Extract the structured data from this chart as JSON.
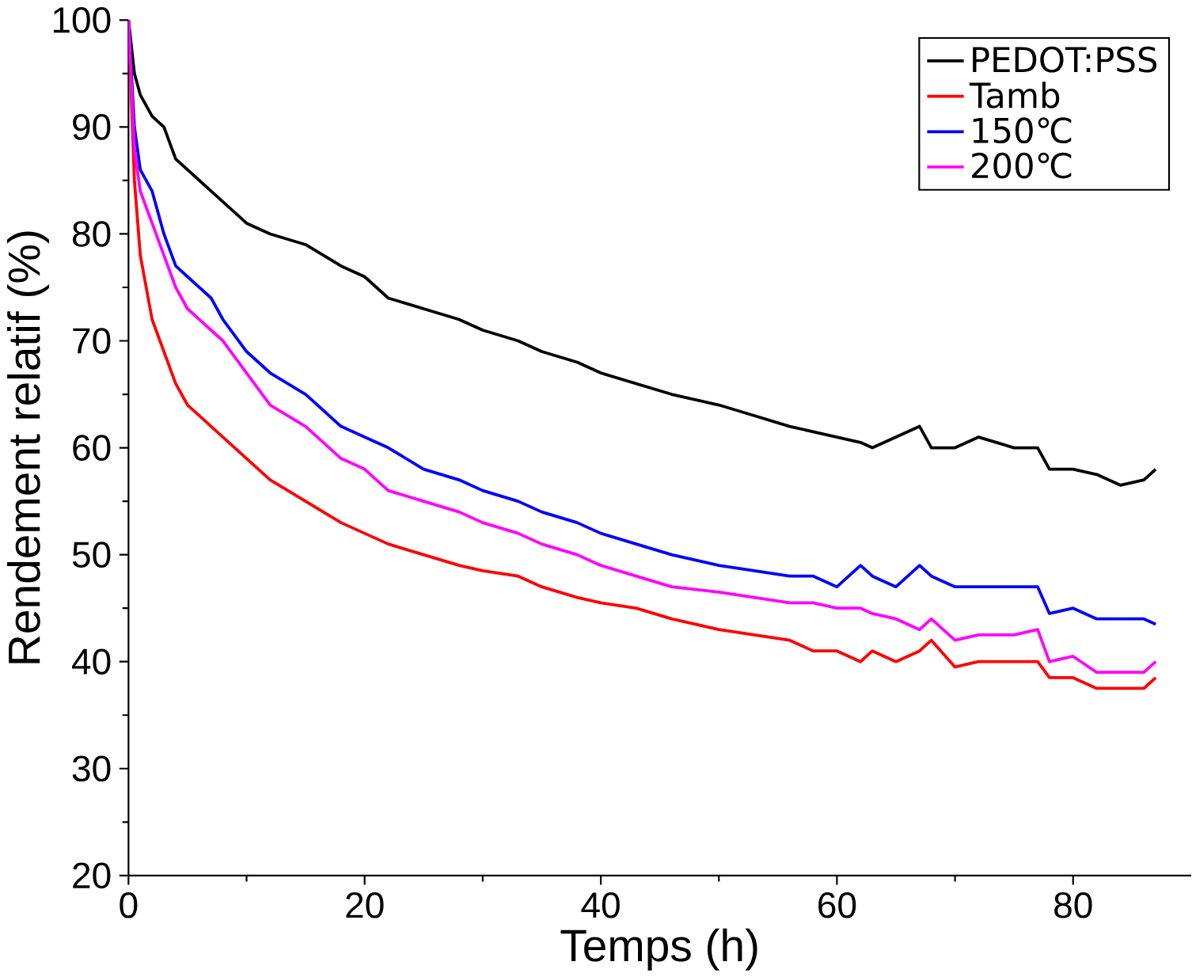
{
  "chart_data": {
    "type": "line",
    "xlabel": "Temps (h)",
    "ylabel": "Rendement relatif (%)",
    "xlim": [
      0,
      90
    ],
    "ylim": [
      20,
      100
    ],
    "xticks": [
      0,
      20,
      40,
      60,
      80
    ],
    "yticks": [
      20,
      30,
      40,
      50,
      60,
      70,
      80,
      90,
      100
    ],
    "legend": "top right",
    "grid": false,
    "marker": "none",
    "line_style": "solid",
    "x": [
      0,
      0.5,
      1,
      2,
      3,
      4,
      5,
      7,
      8,
      10,
      12,
      15,
      18,
      20,
      22,
      25,
      28,
      30,
      33,
      35,
      38,
      40,
      43,
      46,
      50,
      53,
      56,
      58,
      60,
      62,
      63,
      65,
      67,
      68,
      70,
      72,
      75,
      77,
      78,
      80,
      82,
      84,
      86,
      87
    ],
    "series": [
      {
        "name": "PEDOT:PSS",
        "color": "#000000",
        "values": [
          100,
          95,
          93,
          91,
          90,
          87,
          86,
          84,
          83,
          81,
          80,
          79,
          77,
          76,
          74,
          73,
          72,
          71,
          70,
          69,
          68,
          67,
          66,
          65,
          64,
          63,
          62,
          61.5,
          61,
          60.5,
          60,
          61,
          62,
          60,
          60,
          61,
          60,
          60,
          58,
          58,
          57.5,
          56.5,
          57,
          58
        ]
      },
      {
        "name": "Tamb",
        "color": "#ff0000",
        "values": [
          100,
          85,
          78,
          72,
          69,
          66,
          64,
          62,
          61,
          59,
          57,
          55,
          53,
          52,
          51,
          50,
          49,
          48.5,
          48,
          47,
          46,
          45.5,
          45,
          44,
          43,
          42.5,
          42,
          41,
          41,
          40,
          41,
          40,
          41,
          42,
          39.5,
          40,
          40,
          40,
          38.5,
          38.5,
          37.5,
          37.5,
          37.5,
          38.5
        ]
      },
      {
        "name": "150℃",
        "color": "#0000ff",
        "values": [
          100,
          90,
          86,
          84,
          80,
          77,
          76,
          74,
          72,
          69,
          67,
          65,
          62,
          61,
          60,
          58,
          57,
          56,
          55,
          54,
          53,
          52,
          51,
          50,
          49,
          48.5,
          48,
          48,
          47,
          49,
          48,
          47,
          49,
          48,
          47,
          47,
          47,
          47,
          44.5,
          45,
          44,
          44,
          44,
          43.5
        ]
      },
      {
        "name": "200℃",
        "color": "#ff00ff",
        "values": [
          100,
          88,
          84,
          81,
          78,
          75,
          73,
          71,
          70,
          67,
          64,
          62,
          59,
          58,
          56,
          55,
          54,
          53,
          52,
          51,
          50,
          49,
          48,
          47,
          46.5,
          46,
          45.5,
          45.5,
          45,
          45,
          44.5,
          44,
          43,
          44,
          42,
          42.5,
          42.5,
          43,
          40,
          40.5,
          39,
          39,
          39,
          40
        ]
      }
    ]
  }
}
